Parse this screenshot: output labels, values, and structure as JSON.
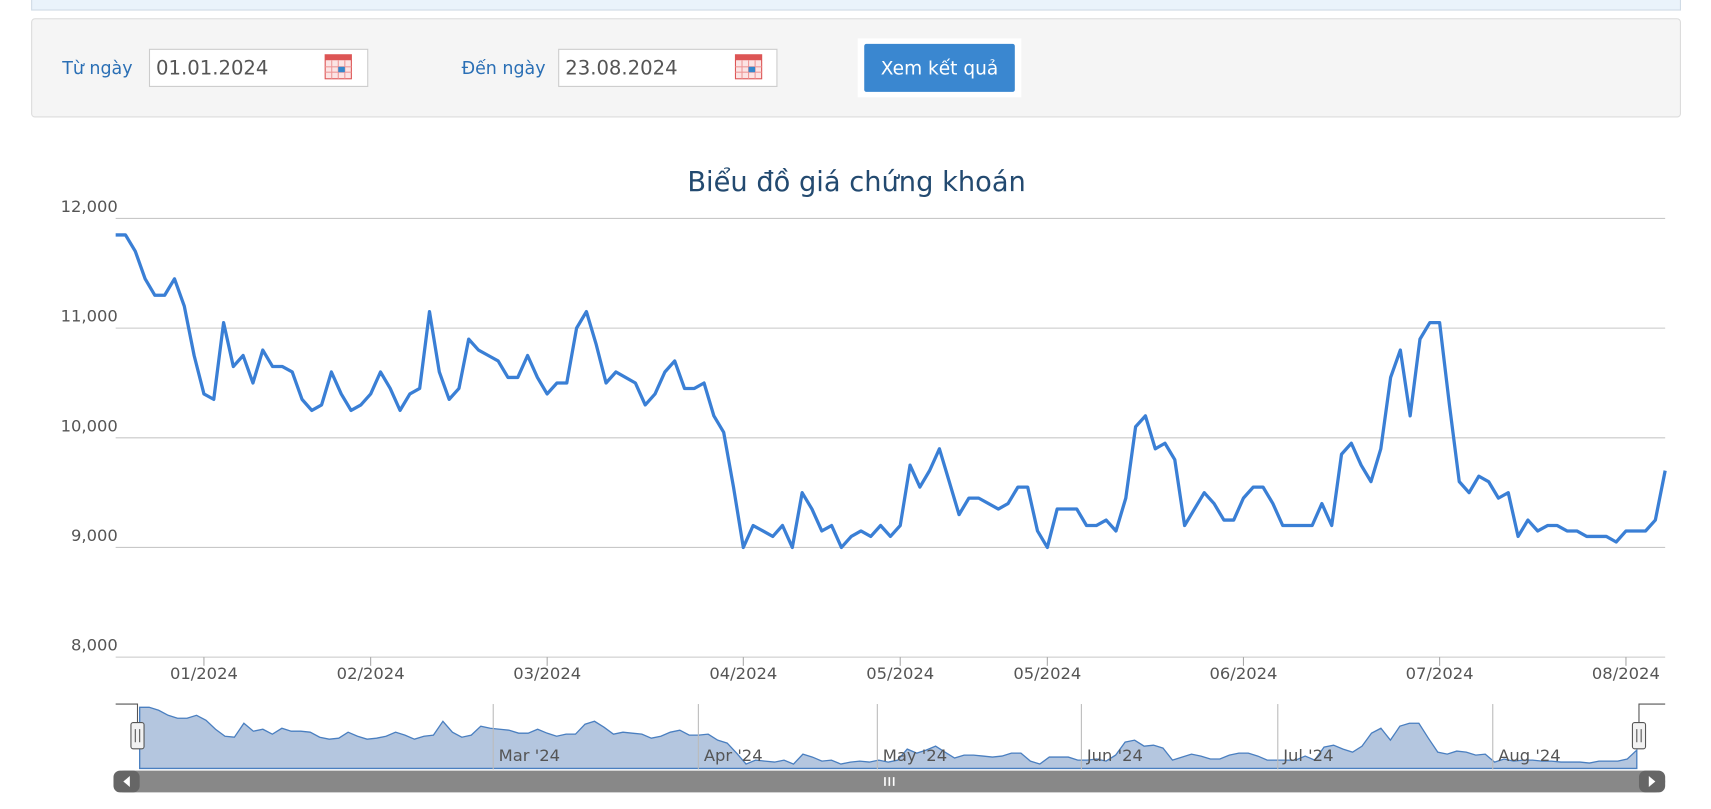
{
  "filter": {
    "from_label": "Từ ngày",
    "from_value": "01.01.2024",
    "to_label": "Đến ngày",
    "to_value": "23.08.2024",
    "button": "Xem kết quả"
  },
  "chart_data": {
    "type": "line",
    "title": "Biểu đồ giá chứng khoán",
    "categories": [
      null,
      null,
      null,
      null,
      null,
      null,
      null,
      null,
      null,
      "01/2024",
      null,
      null,
      null,
      null,
      null,
      null,
      null,
      null,
      null,
      null,
      null,
      null,
      null,
      null,
      null,
      null,
      "02/2024",
      null,
      null,
      null,
      null,
      null,
      null,
      null,
      null,
      null,
      null,
      null,
      null,
      null,
      null,
      null,
      null,
      null,
      "03/2024",
      null,
      null,
      null,
      null,
      null,
      null,
      null,
      null,
      null,
      null,
      null,
      null,
      null,
      null,
      null,
      null,
      null,
      null,
      null,
      "04/2024",
      null,
      null,
      null,
      null,
      null,
      null,
      null,
      null,
      null,
      null,
      null,
      null,
      null,
      null,
      null,
      "05/2024",
      null,
      null,
      null,
      null,
      null,
      null,
      null,
      null,
      null,
      null,
      null,
      null,
      null,
      null,
      "05/2024",
      null,
      null,
      null,
      null,
      null,
      null,
      null,
      null,
      null,
      null,
      null,
      null,
      null,
      null,
      null,
      null,
      null,
      null,
      null,
      "06/2024",
      null,
      null,
      null,
      null,
      null,
      null,
      null,
      null,
      null,
      null,
      null,
      null,
      null,
      null,
      null,
      null,
      null,
      null,
      null,
      "07/2024",
      null,
      null,
      null,
      null,
      null,
      null,
      null,
      null,
      null,
      null,
      null,
      null,
      null,
      null,
      null,
      null,
      null,
      null,
      "08/2024",
      null,
      null,
      null,
      null
    ],
    "series": [
      {
        "color": "#3a7fd5",
        "values": [
          11850,
          11850,
          11700,
          11450,
          11300,
          11300,
          11450,
          11200,
          10750,
          10400,
          10350,
          11050,
          10650,
          10750,
          10500,
          10800,
          10650,
          10650,
          10600,
          10350,
          10250,
          10300,
          10600,
          10400,
          10250,
          10300,
          10400,
          10600,
          10450,
          10250,
          10400,
          10450,
          11150,
          10600,
          10350,
          10450,
          10900,
          10800,
          10750,
          10700,
          10550,
          10550,
          10750,
          10550,
          10400,
          10500,
          10500,
          11000,
          11150,
          10850,
          10500,
          10600,
          10550,
          10500,
          10300,
          10400,
          10600,
          10700,
          10450,
          10450,
          10500,
          10200,
          10050,
          9550,
          9000,
          9200,
          9150,
          9100,
          9200,
          9000,
          9500,
          9350,
          9150,
          9200,
          9000,
          9100,
          9150,
          9100,
          9200,
          9100,
          9200,
          9750,
          9550,
          9700,
          9900,
          9600,
          9300,
          9450,
          9450,
          9400,
          9350,
          9400,
          9550,
          9550,
          9150,
          9000,
          9350,
          9350,
          9350,
          9200,
          9200,
          9250,
          9150,
          9450,
          10100,
          10200,
          9900,
          9950,
          9800,
          9200,
          9350,
          9500,
          9400,
          9250,
          9250,
          9450,
          9550,
          9550,
          9400,
          9200,
          9200,
          9200,
          9200,
          9400,
          9200,
          9850,
          9950,
          9750,
          9600,
          9900,
          10550,
          10800,
          10200,
          10900,
          11050,
          11050,
          10300,
          9600,
          9500,
          9650,
          9600,
          9450,
          9500,
          9100,
          9250,
          9150,
          9200,
          9200,
          9150,
          9150,
          9100,
          9100,
          9100,
          9050,
          9150,
          9150,
          9150,
          9250,
          9700
        ]
      }
    ],
    "ylim": [
      8000,
      12000
    ],
    "yticks": [
      {
        "value": 8000,
        "label": "8,000"
      },
      {
        "value": 9000,
        "label": "9,000"
      },
      {
        "value": 10000,
        "label": "10,000"
      },
      {
        "value": 11000,
        "label": "11,000"
      },
      {
        "value": 12000,
        "label": "12,000"
      }
    ],
    "grid": true,
    "navigator": {
      "labels": [
        "Mar '24",
        "Apr '24",
        "May '24",
        "Jun '24",
        "Jul '24",
        "Aug '24"
      ]
    }
  }
}
